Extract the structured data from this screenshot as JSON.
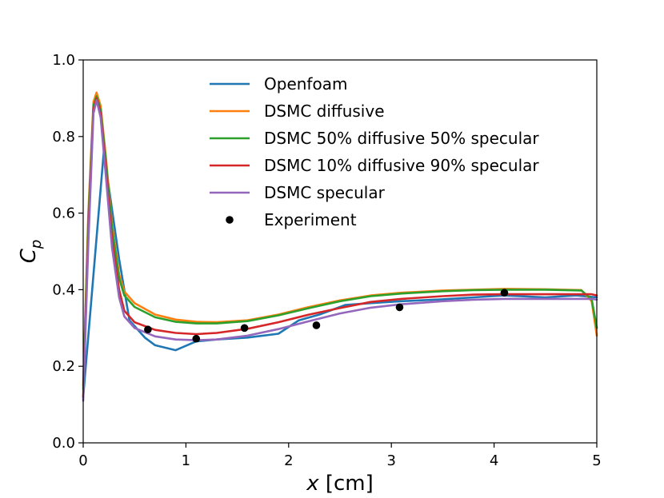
{
  "chart_data": {
    "type": "line",
    "xlabel_var": "x",
    "xlabel_unit": " [cm]",
    "ylabel_var": "C",
    "ylabel_sub": "p",
    "xlim": [
      0,
      5
    ],
    "ylim": [
      0,
      1.0
    ],
    "x_ticks": [
      0,
      1,
      2,
      3,
      4,
      5
    ],
    "x_tick_labels": [
      "0",
      "1",
      "2",
      "3",
      "4",
      "5"
    ],
    "y_ticks": [
      0,
      0.2,
      0.4,
      0.6,
      0.8,
      1.0
    ],
    "y_tick_labels": [
      "0.0",
      "0.2",
      "0.4",
      "0.6",
      "0.8",
      "1.0"
    ],
    "grid": false,
    "legend_position": "top-center",
    "series": [
      {
        "name": "Openfoam",
        "color": "#1f77b4",
        "kind": "line",
        "x": [
          0,
          0.2,
          0.35,
          0.45,
          0.6,
          0.7,
          0.9,
          1.1,
          1.3,
          1.6,
          1.9,
          2.1,
          2.3,
          2.55,
          2.8,
          3.1,
          3.5,
          3.8,
          4.1,
          4.5,
          4.8,
          5.0
        ],
        "y": [
          0.12,
          0.76,
          0.48,
          0.32,
          0.275,
          0.255,
          0.242,
          0.265,
          0.27,
          0.275,
          0.285,
          0.32,
          0.335,
          0.36,
          0.365,
          0.37,
          0.375,
          0.38,
          0.385,
          0.38,
          0.385,
          0.38
        ]
      },
      {
        "name": "DSMC diffusive",
        "color": "#ff7f0e",
        "kind": "line",
        "x": [
          0,
          0.05,
          0.1,
          0.13,
          0.17,
          0.22,
          0.28,
          0.35,
          0.4,
          0.5,
          0.7,
          0.9,
          1.1,
          1.3,
          1.6,
          1.9,
          2.2,
          2.5,
          2.8,
          3.1,
          3.5,
          3.8,
          4.1,
          4.5,
          4.85,
          4.95,
          5.0
        ],
        "y": [
          0.15,
          0.6,
          0.89,
          0.915,
          0.88,
          0.75,
          0.57,
          0.44,
          0.395,
          0.365,
          0.335,
          0.322,
          0.316,
          0.315,
          0.32,
          0.335,
          0.355,
          0.372,
          0.385,
          0.392,
          0.398,
          0.4,
          0.402,
          0.401,
          0.399,
          0.37,
          0.28
        ]
      },
      {
        "name": "DSMC 50% diffusive 50% specular",
        "color": "#2ca02c",
        "kind": "line",
        "x": [
          0,
          0.05,
          0.1,
          0.13,
          0.17,
          0.22,
          0.28,
          0.35,
          0.4,
          0.5,
          0.7,
          0.9,
          1.1,
          1.3,
          1.6,
          1.9,
          2.2,
          2.5,
          2.8,
          3.1,
          3.5,
          3.8,
          4.1,
          4.5,
          4.85,
          4.95,
          5.0
        ],
        "y": [
          0.14,
          0.58,
          0.88,
          0.905,
          0.87,
          0.74,
          0.56,
          0.43,
          0.385,
          0.355,
          0.328,
          0.316,
          0.312,
          0.312,
          0.318,
          0.333,
          0.352,
          0.37,
          0.383,
          0.39,
          0.396,
          0.399,
          0.4,
          0.4,
          0.398,
          0.375,
          0.3
        ]
      },
      {
        "name": "DSMC 10% diffusive 90% specular",
        "color": "#d62728",
        "kind": "line",
        "x": [
          0,
          0.05,
          0.1,
          0.13,
          0.17,
          0.22,
          0.28,
          0.35,
          0.4,
          0.5,
          0.7,
          0.9,
          1.1,
          1.3,
          1.6,
          1.9,
          2.2,
          2.5,
          2.8,
          3.1,
          3.5,
          3.8,
          4.1,
          4.5,
          4.85,
          4.95,
          5.0
        ],
        "y": [
          0.12,
          0.55,
          0.87,
          0.9,
          0.86,
          0.72,
          0.53,
          0.4,
          0.345,
          0.315,
          0.295,
          0.287,
          0.284,
          0.287,
          0.298,
          0.315,
          0.335,
          0.352,
          0.368,
          0.376,
          0.383,
          0.387,
          0.388,
          0.388,
          0.388,
          0.388,
          0.385
        ]
      },
      {
        "name": "DSMC specular",
        "color": "#9467bd",
        "kind": "line",
        "x": [
          0,
          0.05,
          0.1,
          0.13,
          0.17,
          0.22,
          0.28,
          0.35,
          0.4,
          0.5,
          0.7,
          0.9,
          1.1,
          1.3,
          1.6,
          1.9,
          2.2,
          2.5,
          2.8,
          3.1,
          3.5,
          3.8,
          4.1,
          4.5,
          4.85,
          4.95,
          5.0
        ],
        "y": [
          0.11,
          0.52,
          0.86,
          0.895,
          0.85,
          0.7,
          0.51,
          0.38,
          0.33,
          0.3,
          0.278,
          0.27,
          0.268,
          0.27,
          0.28,
          0.297,
          0.318,
          0.338,
          0.353,
          0.362,
          0.37,
          0.374,
          0.376,
          0.376,
          0.376,
          0.376,
          0.374
        ]
      },
      {
        "name": "Experiment",
        "color": "#000000",
        "kind": "scatter",
        "x": [
          0.63,
          1.1,
          1.57,
          2.27,
          3.08,
          4.1
        ],
        "y": [
          0.296,
          0.272,
          0.3,
          0.307,
          0.354,
          0.392
        ]
      }
    ]
  }
}
